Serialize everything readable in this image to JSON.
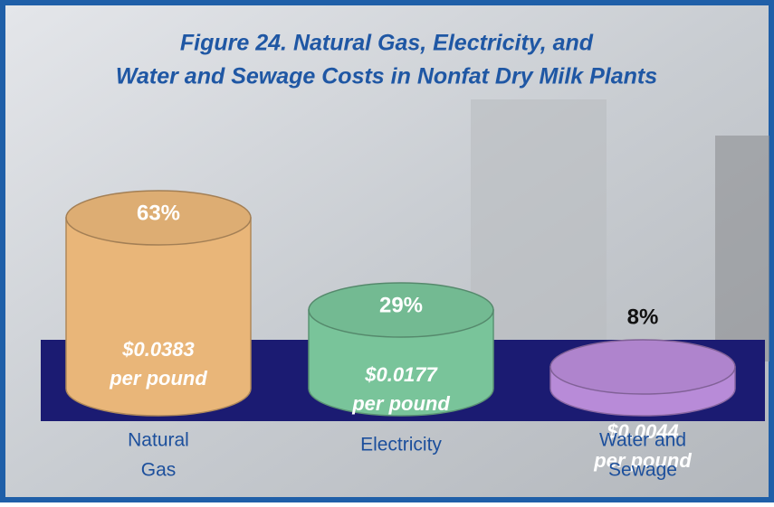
{
  "chart_data": {
    "type": "cylinder",
    "title_lines": [
      "Figure 24. Natural Gas, Electricity, and",
      "Water and Sewage Costs in Nonfat Dry Milk Plants"
    ],
    "categories": [
      [
        "Natural",
        "Gas"
      ],
      [
        "Electricity"
      ],
      [
        "Water and",
        "Sewage"
      ]
    ],
    "values": [
      63,
      29,
      8
    ],
    "value_labels": [
      "63%",
      "29%",
      "8%"
    ],
    "cost_labels": [
      "$0.0383",
      "$0.0177",
      "$0.0044"
    ],
    "cost_unit": "per pound",
    "colors": [
      "#e9b679",
      "#79c49a",
      "#b88bd8"
    ]
  }
}
